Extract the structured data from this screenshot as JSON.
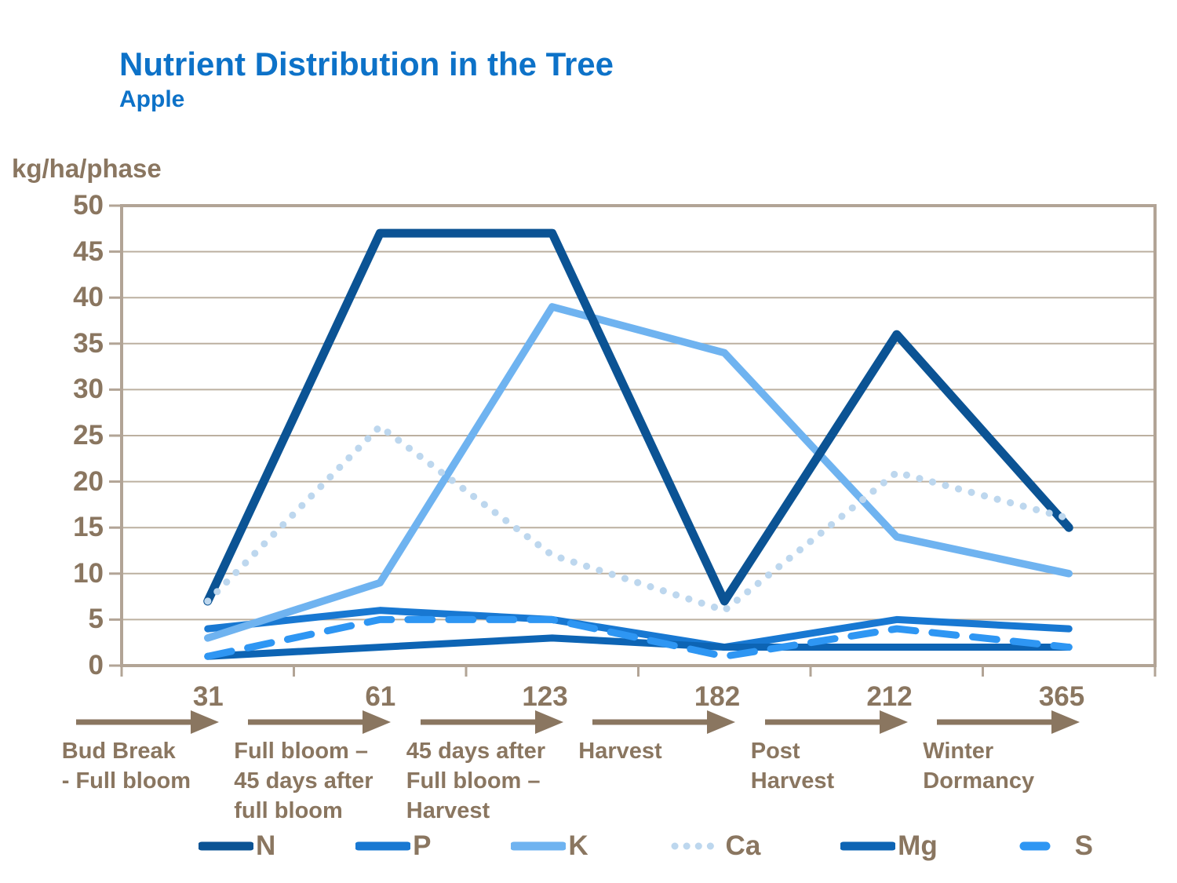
{
  "title": "Nutrient Distribution in the Tree",
  "subtitle": "Apple",
  "y_axis_label": "kg/ha/phase",
  "colors": {
    "title_blue": "#0d72c8",
    "axis_text_brown": "#8a7660",
    "frame": "#b2a496",
    "gridline": "#bcb0a0",
    "background": "#ffffff"
  },
  "chart_data": {
    "type": "line",
    "categories": [
      "31",
      "61",
      "123",
      "182",
      "212",
      "365"
    ],
    "phase_labels": [
      [
        "Bud Break",
        "- Full bloom"
      ],
      [
        "Full bloom –",
        "45 days after",
        "full bloom"
      ],
      [
        "45 days after",
        "Full bloom –",
        "Harvest"
      ],
      [
        "Harvest"
      ],
      [
        "Post",
        "Harvest"
      ],
      [
        "Winter",
        "Dormancy"
      ]
    ],
    "series": [
      {
        "name": "N",
        "style": "solid",
        "color": "#0b5394",
        "values": [
          7,
          47,
          47,
          7,
          36,
          15
        ]
      },
      {
        "name": "P",
        "style": "solid",
        "color": "#1878d2",
        "values": [
          4,
          6,
          5,
          2,
          5,
          4
        ]
      },
      {
        "name": "K",
        "style": "solid",
        "color": "#6fb3f0",
        "values": [
          3,
          9,
          39,
          34,
          14,
          10
        ]
      },
      {
        "name": "Ca",
        "style": "dotted",
        "color": "#bdd7ee",
        "values": [
          7,
          26,
          12,
          6,
          21,
          16
        ]
      },
      {
        "name": "Mg",
        "style": "solid",
        "color": "#0d64b4",
        "values": [
          1,
          2,
          3,
          2,
          2,
          2
        ]
      },
      {
        "name": "S",
        "style": "dashed",
        "color": "#2e96f3",
        "values": [
          1,
          5,
          5,
          1,
          4,
          2
        ]
      }
    ],
    "ylim": [
      0,
      50
    ],
    "ytick_step": 5,
    "grid": true,
    "legend_position": "bottom"
  }
}
